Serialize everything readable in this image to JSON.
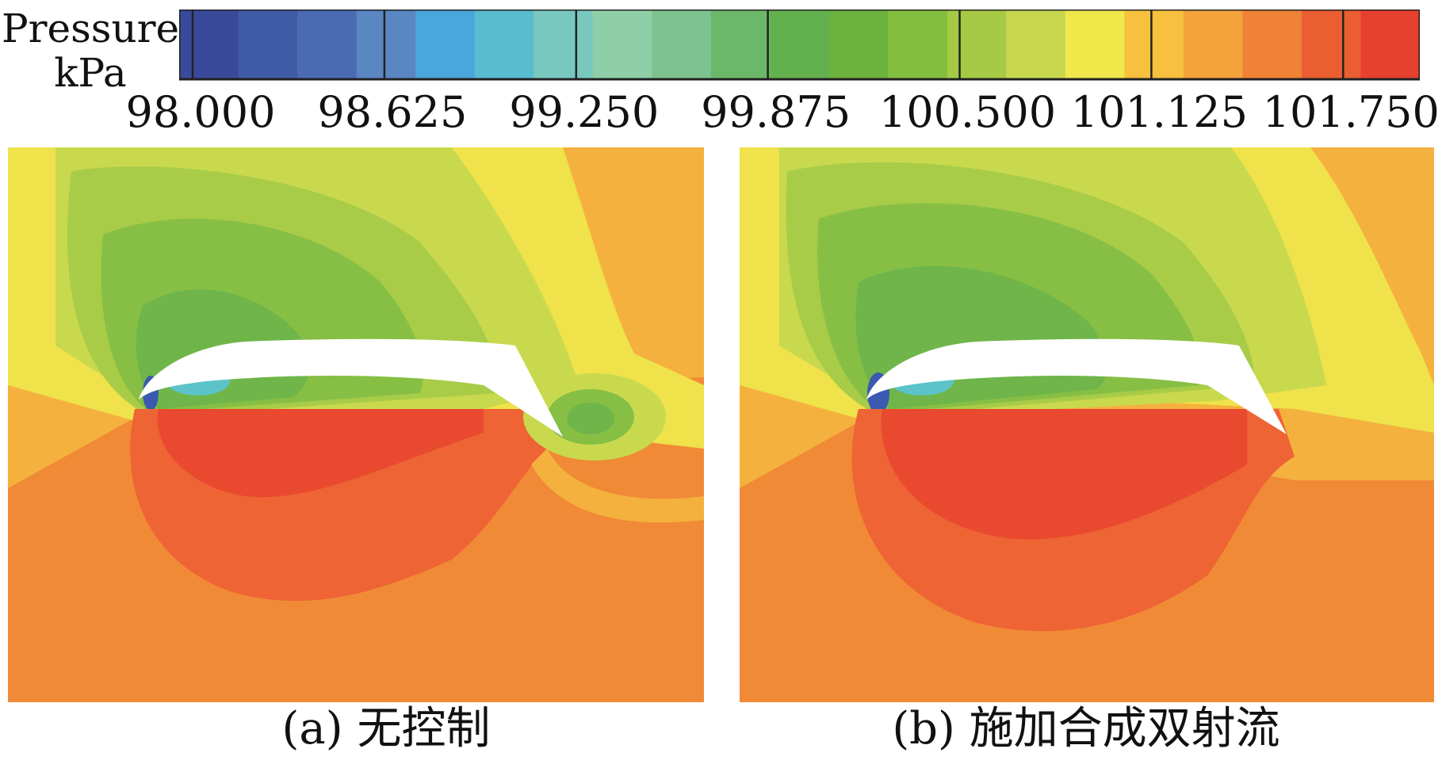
{
  "legend": {
    "title_line1": "Pressure/",
    "title_line2": "kPa",
    "tick_labels": [
      "98.000",
      "98.625",
      "99.250",
      "99.875",
      "100.500",
      "101.125",
      "101.750"
    ],
    "range": [
      98.0,
      102.0
    ],
    "colors": [
      "#3a4a9a",
      "#3f5aa6",
      "#4a6bb2",
      "#5a86c2",
      "#4aa6dc",
      "#5abccf",
      "#79c8c0",
      "#8ecfa8",
      "#7ec38f",
      "#6cb86a",
      "#63b04e",
      "#6cb23e",
      "#84be3e",
      "#a6ca45",
      "#c7d84e",
      "#f0e84a",
      "#f7c03e",
      "#f4a23a",
      "#ef8236",
      "#ea5e32",
      "#e6402f"
    ]
  },
  "panels": [
    {
      "id": "a",
      "caption": "(a) 无控制"
    },
    {
      "id": "b",
      "caption": "(b) 施加合成双射流"
    }
  ],
  "field_colors": {
    "red": "#e8492f",
    "orange_red": "#ee6434",
    "orange": "#f08a36",
    "light_orange": "#f5b13e",
    "yellow": "#efe24a",
    "yellow_green": "#c9d94e",
    "light_green": "#a8cc48",
    "green": "#86bf44",
    "mid_green": "#6fb54a",
    "cyan": "#5cc3c9",
    "blue": "#3b59b0"
  }
}
